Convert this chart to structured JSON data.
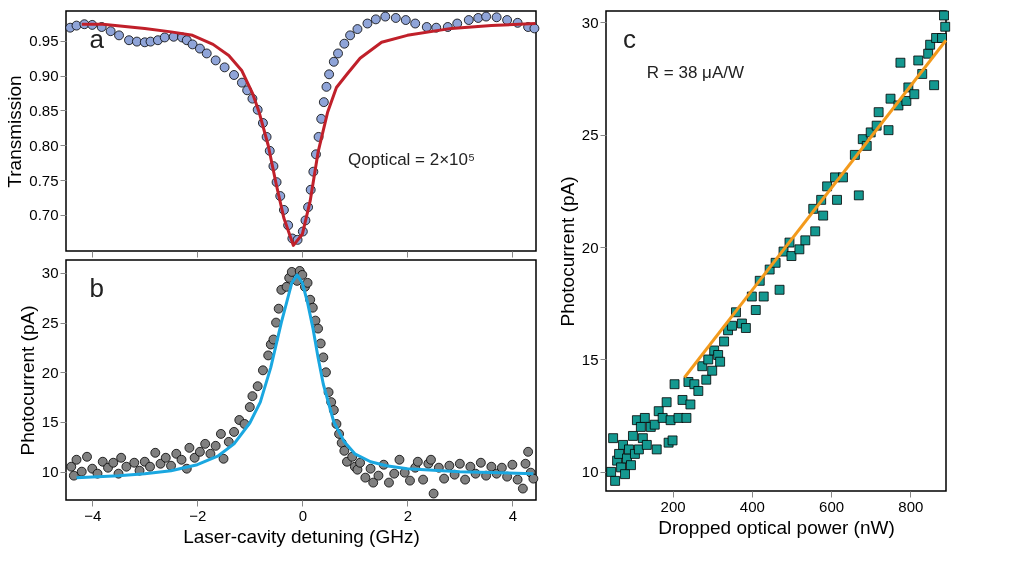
{
  "chart_data": [
    {
      "type": "scatter",
      "ylabel": "Transmission",
      "annotations": [
        "a",
        "Qoptical = 2×10⁵"
      ],
      "grid": false,
      "tick_labels": "y",
      "xlim": [
        -4.5,
        4.45
      ],
      "ylim": [
        0.648,
        0.993
      ],
      "xticks": [
        -4,
        -2,
        0,
        2,
        4
      ],
      "yticks": [
        {
          "value": 0.7,
          "label": "0.70"
        },
        0.75,
        {
          "value": 0.8,
          "label": "0.80"
        },
        0.85,
        {
          "value": 0.9,
          "label": "0.90"
        },
        0.95
      ],
      "series": [
        {
          "marker": "circle",
          "color": "#8fa4d8",
          "x": [
            -4.42,
            -4.3,
            -4.15,
            -4.0,
            -3.82,
            -3.65,
            -3.49,
            -3.3,
            -3.15,
            -3.0,
            -2.89,
            -2.75,
            -2.62,
            -2.45,
            -2.29,
            -2.2,
            -2.09,
            -1.95,
            -1.82,
            -1.65,
            -1.48,
            -1.3,
            -1.15,
            -1.05,
            -0.95,
            -0.85,
            -0.75,
            -0.68,
            -0.62,
            -0.55,
            -0.49,
            -0.42,
            -0.35,
            -0.27,
            -0.19,
            -0.09,
            0.01,
            0.06,
            0.11,
            0.16,
            0.21,
            0.26,
            0.31,
            0.36,
            0.41,
            0.46,
            0.51,
            0.6,
            0.68,
            0.8,
            0.91,
            1.05,
            1.24,
            1.4,
            1.58,
            1.78,
            1.97,
            2.15,
            2.37,
            2.55,
            2.77,
            2.95,
            3.17,
            3.35,
            3.5,
            3.7,
            3.9,
            4.1,
            4.3,
            4.42
          ],
          "values": [
            0.969,
            0.972,
            0.974,
            0.973,
            0.97,
            0.964,
            0.958,
            0.951,
            0.949,
            0.948,
            0.949,
            0.951,
            0.955,
            0.956,
            0.955,
            0.951,
            0.945,
            0.939,
            0.932,
            0.922,
            0.912,
            0.901,
            0.89,
            0.879,
            0.867,
            0.851,
            0.832,
            0.812,
            0.792,
            0.77,
            0.747,
            0.727,
            0.707,
            0.685,
            0.666,
            0.664,
            0.676,
            0.692,
            0.711,
            0.736,
            0.762,
            0.787,
            0.812,
            0.838,
            0.862,
            0.884,
            0.902,
            0.92,
            0.932,
            0.946,
            0.958,
            0.967,
            0.975,
            0.981,
            0.985,
            0.983,
            0.98,
            0.975,
            0.97,
            0.969,
            0.97,
            0.975,
            0.98,
            0.983,
            0.985,
            0.984,
            0.98,
            0.976,
            0.97,
            0.968
          ]
        },
        {
          "type": "line",
          "marker": "none",
          "color": "#c0202a",
          "x": [
            -4.2,
            -3.8,
            -3.0,
            -2.5,
            -2.09,
            -1.7,
            -1.4,
            -1.15,
            -0.95,
            -0.82,
            -0.65,
            -0.5,
            -0.35,
            -0.17,
            0.0,
            0.15,
            0.3,
            0.48,
            0.65,
            0.85,
            1.1,
            1.51,
            2.0,
            2.84,
            3.6,
            4.44
          ],
          "values": [
            0.974,
            0.974,
            0.968,
            0.963,
            0.958,
            0.945,
            0.929,
            0.907,
            0.875,
            0.847,
            0.8,
            0.745,
            0.695,
            0.656,
            0.672,
            0.72,
            0.79,
            0.847,
            0.883,
            0.902,
            0.925,
            0.948,
            0.958,
            0.968,
            0.972,
            0.975
          ]
        }
      ]
    },
    {
      "type": "scatter",
      "xlabel": "Laser-cavity detuning (GHz)",
      "ylabel": "Photocurrent (pA)",
      "annotations": [
        "b"
      ],
      "grid": false,
      "xlim": [
        -4.5,
        4.45
      ],
      "ylim": [
        7.15,
        31.3
      ],
      "xticks": [
        -4,
        -2,
        0,
        2,
        4
      ],
      "yticks": [
        10,
        15,
        20,
        25,
        30
      ],
      "series": [
        {
          "marker": "circle",
          "color": "#808080",
          "x": [
            -4.4,
            -4.35,
            -4.3,
            -4.2,
            -4.1,
            -4.0,
            -3.9,
            -3.8,
            -3.7,
            -3.6,
            -3.5,
            -3.45,
            -3.35,
            -3.2,
            -3.1,
            -3.0,
            -2.9,
            -2.8,
            -2.7,
            -2.6,
            -2.5,
            -2.4,
            -2.3,
            -2.2,
            -2.15,
            -2.05,
            -1.95,
            -1.85,
            -1.75,
            -1.65,
            -1.55,
            -1.5,
            -1.4,
            -1.3,
            -1.2,
            -1.1,
            -1.0,
            -0.95,
            -0.85,
            -0.75,
            -0.65,
            -0.6,
            -0.55,
            -0.5,
            -0.45,
            -0.4,
            -0.3,
            -0.25,
            -0.2,
            -0.1,
            -0.05,
            0.0,
            0.05,
            0.1,
            0.15,
            0.2,
            0.25,
            0.3,
            0.35,
            0.4,
            0.45,
            0.5,
            0.55,
            0.6,
            0.65,
            0.7,
            0.75,
            0.8,
            0.85,
            0.95,
            1.0,
            1.05,
            1.1,
            1.2,
            1.3,
            1.35,
            1.45,
            1.55,
            1.65,
            1.75,
            1.85,
            1.95,
            2.05,
            2.15,
            2.2,
            2.3,
            2.4,
            2.45,
            2.5,
            2.6,
            2.7,
            2.8,
            2.9,
            3.0,
            3.1,
            3.2,
            3.3,
            3.4,
            3.5,
            3.6,
            3.7,
            3.8,
            3.9,
            4.0,
            4.1,
            4.2,
            4.25,
            4.3,
            4.35,
            4.4
          ],
          "values": [
            10.5,
            9.6,
            11.2,
            10.0,
            11.5,
            10.3,
            9.8,
            11.0,
            10.4,
            10.9,
            9.8,
            11.4,
            10.5,
            10.9,
            10.1,
            11.0,
            10.5,
            11.9,
            10.8,
            11.4,
            10.6,
            11.8,
            11.2,
            10.3,
            12.4,
            11.4,
            12.0,
            12.8,
            11.8,
            12.6,
            13.8,
            11.3,
            13.0,
            14.0,
            15.2,
            14.8,
            16.5,
            17.6,
            18.6,
            20.2,
            21.7,
            22.8,
            23.3,
            25.0,
            26.4,
            28.3,
            28.6,
            29.5,
            30.1,
            29.2,
            30.2,
            29.8,
            28.6,
            29.0,
            27.3,
            26.5,
            25.2,
            24.4,
            22.9,
            21.5,
            20.0,
            18.0,
            17.0,
            16.2,
            14.8,
            13.8,
            12.9,
            12.1,
            11.0,
            11.5,
            10.5,
            10.2,
            10.9,
            9.4,
            10.3,
            8.9,
            9.6,
            10.7,
            8.9,
            9.8,
            11.2,
            9.9,
            9.1,
            10.4,
            11.0,
            9.2,
            10.8,
            11.2,
            7.8,
            10.4,
            9.3,
            10.6,
            9.7,
            10.8,
            9.2,
            10.5,
            9.8,
            10.9,
            9.6,
            10.5,
            9.8,
            10.4,
            9.5,
            10.7,
            9.2,
            8.3,
            10.8,
            12.0,
            9.9,
            9.3
          ]
        },
        {
          "type": "line",
          "marker": "none",
          "color": "#1aa7e0",
          "x": [
            -4.3,
            -3.5,
            -3.0,
            -2.5,
            -2.0,
            -1.6,
            -1.3,
            -1.0,
            -0.8,
            -0.6,
            -0.4,
            -0.2,
            -0.1,
            0.0,
            0.1,
            0.2,
            0.3,
            0.4,
            0.6,
            0.8,
            1.0,
            1.3,
            1.6,
            2.0,
            3.0,
            4.4
          ],
          "values": [
            9.4,
            9.6,
            9.8,
            10.1,
            10.7,
            11.6,
            12.8,
            14.9,
            17.0,
            20.5,
            25.0,
            29.0,
            29.8,
            29.0,
            27.0,
            24.5,
            21.5,
            18.8,
            15.0,
            13.0,
            11.8,
            11.0,
            10.6,
            10.3,
            10.0,
            9.8
          ]
        }
      ]
    },
    {
      "type": "scatter",
      "xlabel": "Dropped optical power (nW)",
      "ylabel": "Photocurrent (pA)",
      "annotations": [
        "c",
        "R = 38 μA/W"
      ],
      "grid": false,
      "xlim": [
        32,
        890
      ],
      "ylim": [
        9.15,
        30.5
      ],
      "xticks": [
        200,
        400,
        600,
        800
      ],
      "yticks": [
        10,
        15,
        20,
        25,
        30
      ],
      "series": [
        {
          "marker": "square",
          "color": "#149890",
          "x": [
            45,
            50,
            55,
            60,
            65,
            70,
            75,
            80,
            85,
            90,
            95,
            100,
            105,
            110,
            115,
            120,
            125,
            130,
            135,
            145,
            155,
            160,
            165,
            175,
            185,
            190,
            195,
            200,
            205,
            215,
            225,
            235,
            240,
            245,
            255,
            265,
            275,
            285,
            290,
            300,
            305,
            315,
            320,
            330,
            340,
            350,
            360,
            375,
            385,
            400,
            410,
            420,
            430,
            445,
            460,
            470,
            480,
            495,
            500,
            520,
            535,
            555,
            560,
            575,
            580,
            590,
            610,
            615,
            630,
            660,
            670,
            680,
            690,
            700,
            715,
            720,
            745,
            750,
            770,
            775,
            790,
            795,
            810,
            820,
            830,
            845,
            850,
            860,
            865,
            880,
            885,
            888
          ],
          "values": [
            10.0,
            11.5,
            9.6,
            10.5,
            10.8,
            10.2,
            11.2,
            9.9,
            10.6,
            11.0,
            10.3,
            11.6,
            10.8,
            12.3,
            11.0,
            12.0,
            11.5,
            12.4,
            11.2,
            12.0,
            12.1,
            11.0,
            12.7,
            12.4,
            13.1,
            11.3,
            12.3,
            11.4,
            13.9,
            12.4,
            13.2,
            12.4,
            14.0,
            13.0,
            13.9,
            13.6,
            14.7,
            14.1,
            15.0,
            14.5,
            15.4,
            15.2,
            14.9,
            15.8,
            16.3,
            16.5,
            17.1,
            16.6,
            16.4,
            17.8,
            17.2,
            18.5,
            17.8,
            19.0,
            19.3,
            18.1,
            19.8,
            20.2,
            19.6,
            19.9,
            20.3,
            21.7,
            20.7,
            22.1,
            21.4,
            22.7,
            23.1,
            22.1,
            23.1,
            24.1,
            22.3,
            24.8,
            24.5,
            25.1,
            25.4,
            26.0,
            25.2,
            26.6,
            26.3,
            28.2,
            26.5,
            27.1,
            26.8,
            28.3,
            27.7,
            28.6,
            29.0,
            27.2,
            29.3,
            29.3,
            30.3,
            29.8
          ]
        },
        {
          "type": "line",
          "marker": "none",
          "color": "#f39a1c",
          "x": [
            230,
            890
          ],
          "values": [
            14.2,
            29.2
          ]
        }
      ]
    }
  ]
}
